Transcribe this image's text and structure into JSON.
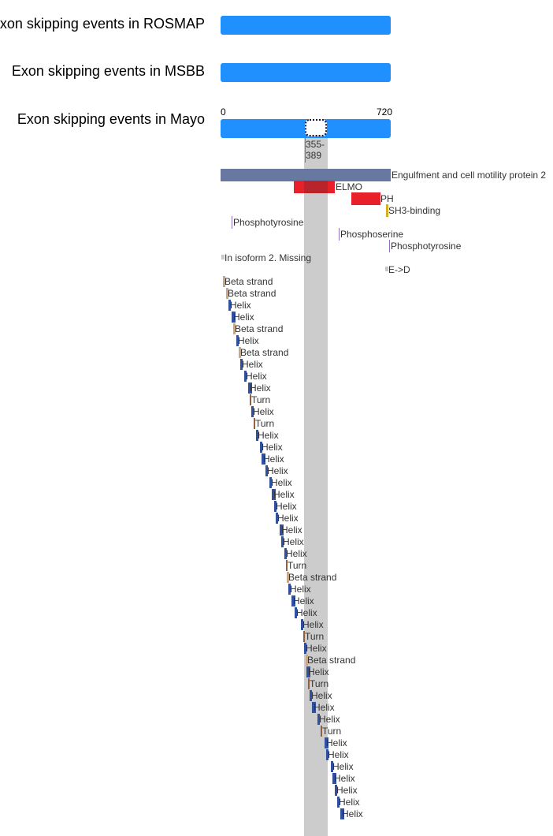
{
  "tracks": [
    {
      "label": "Exon skipping events in ROSMAP"
    },
    {
      "label": "Exon skipping events in MSBB"
    },
    {
      "label": "Exon skipping events in Mayo"
    }
  ],
  "scale": {
    "start": "0",
    "end": "720"
  },
  "selection": {
    "range_label": "355-\n389",
    "start": 355,
    "end": 389
  },
  "colors": {
    "track": "#2090ff",
    "protein": "#6878a0",
    "domain": "#e8202a",
    "motif": "#d4b020",
    "modified_residue": "#9070c0",
    "splice_variant": "#c0c0c0",
    "helix": "#3050a0",
    "beta_strand": "#c8a888",
    "turn": "#906040",
    "selection_column": "#cccccc"
  },
  "features": [
    {
      "label": "Engulfment and cell motility protein 2",
      "type": "protein",
      "start": 1,
      "end": 720
    },
    {
      "label": "ELMO",
      "type": "domain",
      "start": 318,
      "end": 490
    },
    {
      "label": "PH",
      "type": "domain",
      "start": 555,
      "end": 690
    },
    {
      "label": "SH3-binding",
      "type": "motif",
      "start": 705,
      "end": 713
    },
    {
      "label": "Phosphotyrosine",
      "type": "modified_residue",
      "start": 48,
      "end": 48
    },
    {
      "label": "Phosphoserine",
      "type": "modified_residue",
      "start": 502,
      "end": 502
    },
    {
      "label": "Phosphotyrosine",
      "type": "modified_residue",
      "start": 716,
      "end": 716
    },
    {
      "label": "In isoform 2. Missing",
      "type": "splice_variant",
      "start": 1,
      "end": 12
    },
    {
      "label": "E->D",
      "type": "variant",
      "start": 700,
      "end": 700
    }
  ],
  "secondary_structure": [
    {
      "label": "Beta strand",
      "type": "beta_strand",
      "start": 8
    },
    {
      "label": "Beta strand",
      "type": "beta_strand",
      "start": 22
    },
    {
      "label": "Helix",
      "type": "helix",
      "start": 30
    },
    {
      "label": "Helix",
      "type": "helix",
      "start": 48
    },
    {
      "label": "Beta strand",
      "type": "beta_strand",
      "start": 56
    },
    {
      "label": "Helix",
      "type": "helix",
      "start": 70
    },
    {
      "label": "Beta strand",
      "type": "beta_strand",
      "start": 78
    },
    {
      "label": "Helix",
      "type": "helix",
      "start": 82
    },
    {
      "label": "Helix",
      "type": "helix",
      "start": 96
    },
    {
      "label": "Helix",
      "type": "helix",
      "start": 112
    },
    {
      "label": "Turn",
      "type": "turn",
      "start": 124
    },
    {
      "label": "Helix",
      "type": "helix",
      "start": 128
    },
    {
      "label": "Turn",
      "type": "turn",
      "start": 140
    },
    {
      "label": "Helix",
      "type": "helix",
      "start": 148
    },
    {
      "label": "Helix",
      "type": "helix",
      "start": 164
    },
    {
      "label": "Helix",
      "type": "helix",
      "start": 172
    },
    {
      "label": "Helix",
      "type": "helix",
      "start": 188
    },
    {
      "label": "Helix",
      "type": "helix",
      "start": 204
    },
    {
      "label": "Helix",
      "type": "helix",
      "start": 218
    },
    {
      "label": "Helix",
      "type": "helix",
      "start": 226
    },
    {
      "label": "Helix",
      "type": "helix",
      "start": 238
    },
    {
      "label": "Helix",
      "type": "helix",
      "start": 254
    },
    {
      "label": "Helix",
      "type": "helix",
      "start": 262
    },
    {
      "label": "Helix",
      "type": "helix",
      "start": 270
    },
    {
      "label": "Turn",
      "type": "turn",
      "start": 272
    },
    {
      "label": "Beta strand",
      "type": "beta_strand",
      "start": 278
    },
    {
      "label": "Helix",
      "type": "helix",
      "start": 284
    },
    {
      "label": "Helix",
      "type": "helix",
      "start": 298
    },
    {
      "label": "Helix",
      "type": "helix",
      "start": 310
    },
    {
      "label": "Helix",
      "type": "helix",
      "start": 336
    },
    {
      "label": "Turn",
      "type": "turn",
      "start": 344
    },
    {
      "label": "Helix",
      "type": "helix",
      "start": 350
    },
    {
      "label": "Beta strand",
      "type": "beta_strand",
      "start": 358
    },
    {
      "label": "Helix",
      "type": "helix",
      "start": 362
    },
    {
      "label": "Turn",
      "type": "turn",
      "start": 368
    },
    {
      "label": "Helix",
      "type": "helix",
      "start": 374
    },
    {
      "label": "Helix",
      "type": "helix",
      "start": 386
    },
    {
      "label": "Helix",
      "type": "helix",
      "start": 412
    },
    {
      "label": "Turn",
      "type": "turn",
      "start": 420
    },
    {
      "label": "Helix",
      "type": "helix",
      "start": 434
    },
    {
      "label": "Helix",
      "type": "helix",
      "start": 446
    },
    {
      "label": "Helix",
      "type": "helix",
      "start": 458
    },
    {
      "label": "Helix",
      "type": "helix",
      "start": 466
    },
    {
      "label": "Helix",
      "type": "helix",
      "start": 472
    },
    {
      "label": "Helix",
      "type": "helix",
      "start": 480
    },
    {
      "label": "Helix",
      "type": "helix",
      "start": 490
    }
  ]
}
